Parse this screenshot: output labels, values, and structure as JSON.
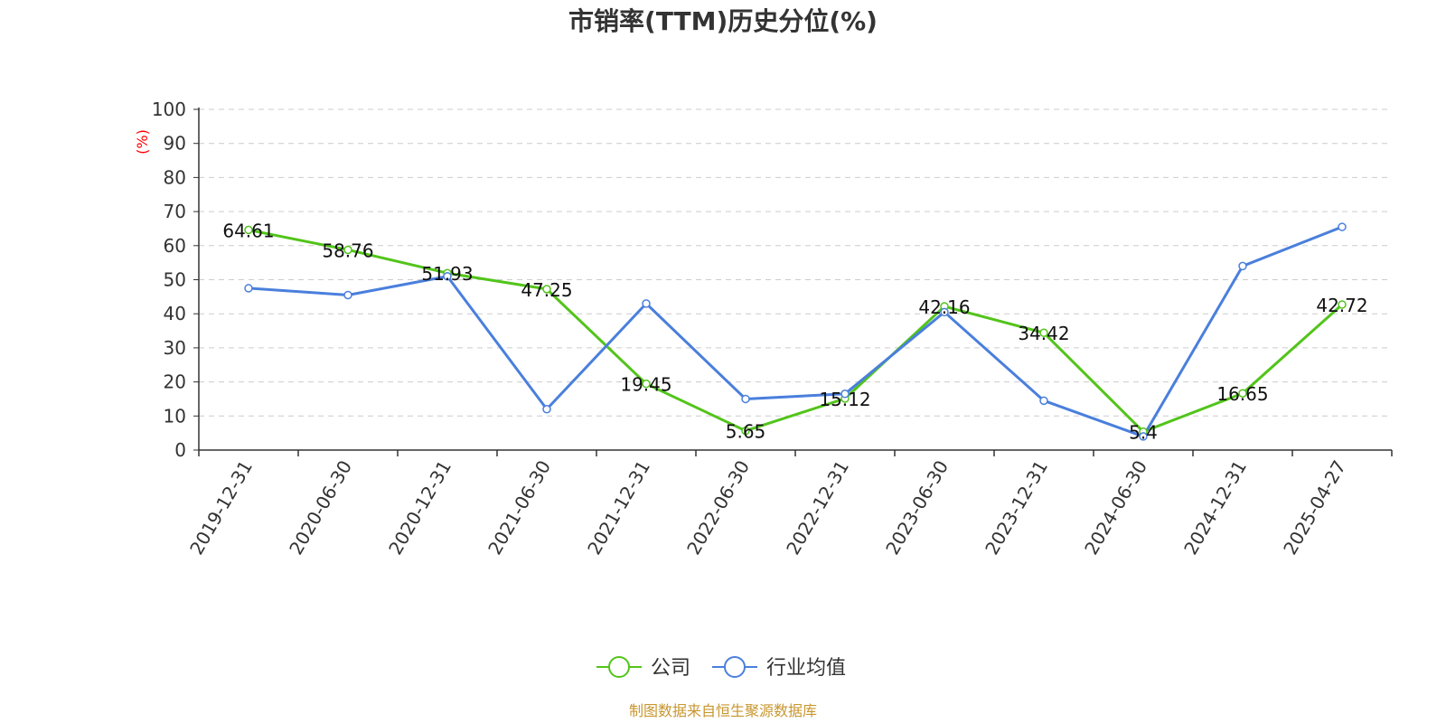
{
  "chart_data": {
    "type": "line",
    "title": "市销率(TTM)历史分位(%)",
    "ylabel": "(%)",
    "ylabel_color": "#ff0000",
    "xlabel": "",
    "ylim": [
      0,
      100
    ],
    "yticks": [
      0,
      10,
      20,
      30,
      40,
      50,
      60,
      70,
      80,
      90,
      100
    ],
    "grid": true,
    "legend_position": "bottom-center",
    "categories": [
      "2019-12-31",
      "2020-06-30",
      "2020-12-31",
      "2021-06-30",
      "2021-12-31",
      "2022-06-30",
      "2022-12-31",
      "2023-06-30",
      "2023-12-31",
      "2024-06-30",
      "2024-12-31",
      "2025-04-27"
    ],
    "series": [
      {
        "name": "公司",
        "color": "#52c41a",
        "values": [
          64.61,
          58.76,
          51.93,
          47.25,
          19.45,
          5.65,
          15.12,
          42.16,
          34.42,
          5.4,
          16.65,
          42.72
        ],
        "labels": [
          "64.61",
          "58.76",
          "51.93",
          "47.25",
          "19.45",
          "5.65",
          "15.12",
          "42.16",
          "34.42",
          "5.4",
          "16.65",
          "42.72"
        ]
      },
      {
        "name": "行业均值",
        "color": "#4a7fdc",
        "values": [
          47.5,
          45.5,
          51.0,
          12.0,
          43.0,
          15.0,
          16.5,
          40.5,
          14.5,
          4.0,
          54.0,
          65.5
        ]
      }
    ],
    "source": "制图数据来自恒生聚源数据库",
    "source_color": "#c8962e"
  }
}
